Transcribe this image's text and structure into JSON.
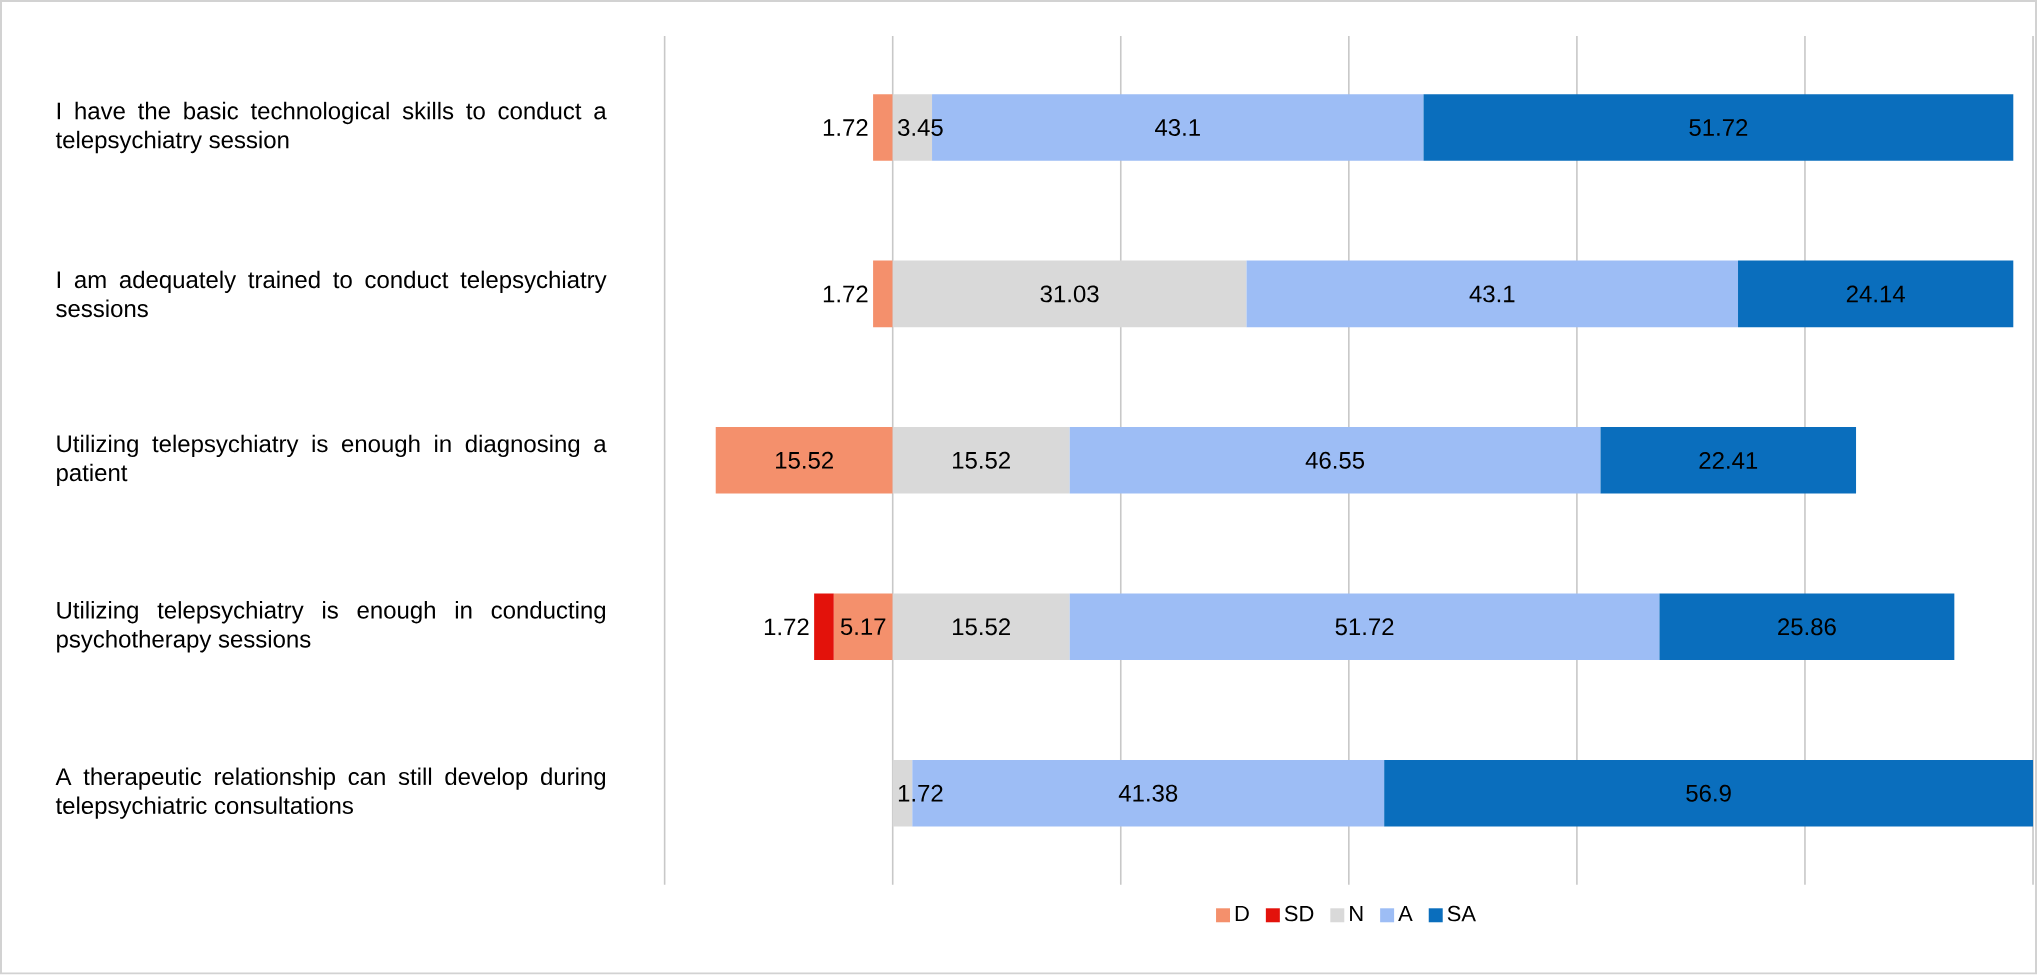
{
  "chart_data": {
    "type": "bar",
    "orientation": "horizontal",
    "stacked": true,
    "categories": [
      "I have the basic technological skills to conduct a telepsychiatry session",
      "I am adequately trained to conduct telepsychiatry sessions",
      "Utilizing telepsychiatry is enough in diagnosing a patient",
      "Utilizing telepsychiatry is enough in conducting psychotherapy sessions",
      "A therapeutic relationship can still develop during telepsychiatric consultations"
    ],
    "series": [
      {
        "name": "D",
        "color": "#f4906c",
        "values": [
          -1.72,
          -1.72,
          -15.52,
          -5.17,
          null
        ]
      },
      {
        "name": "SD",
        "color": "#e3120b",
        "values": [
          null,
          null,
          null,
          -1.72,
          null
        ]
      },
      {
        "name": "N",
        "color": "#d9d9d9",
        "values": [
          3.45,
          31.03,
          15.52,
          15.52,
          1.72
        ],
        "value_labels": [
          "3.45",
          "31.03",
          "15.52",
          "15.52",
          "1.72"
        ]
      },
      {
        "name": "A",
        "color": "#9dbdf5",
        "values": [
          43.1,
          43.1,
          46.55,
          51.72,
          41.38
        ],
        "value_labels": [
          "43.1",
          "43.1",
          "46.55",
          "51.72",
          "41.38"
        ]
      },
      {
        "name": "SA",
        "color": "#0a6ebd",
        "values": [
          51.72,
          24.14,
          22.41,
          25.86,
          56.9
        ],
        "value_labels": [
          "51.72",
          "24.14",
          "22.41",
          "25.86",
          "56.9"
        ]
      }
    ],
    "annotations": [
      {
        "text": "1.72",
        "x": -1.72,
        "y": "I have the basic technological skills to conduct a telepsychiatry session"
      },
      {
        "text": "1.72",
        "x": -1.72,
        "y": "I am adequately trained to conduct telepsychiatry sessions"
      },
      {
        "text": "15.52",
        "x": -15.52,
        "y": "Utilizing telepsychiatry is enough in diagnosing a patient"
      },
      {
        "text": "5.17",
        "x": -5.17,
        "y": "Utilizing telepsychiatry is enough in conducting psychotherapy sessions"
      },
      {
        "text": "1.72",
        "x": -6.89,
        "y": "Utilizing telepsychiatry is enough in conducting psychotherapy sessions"
      }
    ],
    "grid": "x",
    "legend": "bottom",
    "tick_labels": "y"
  }
}
